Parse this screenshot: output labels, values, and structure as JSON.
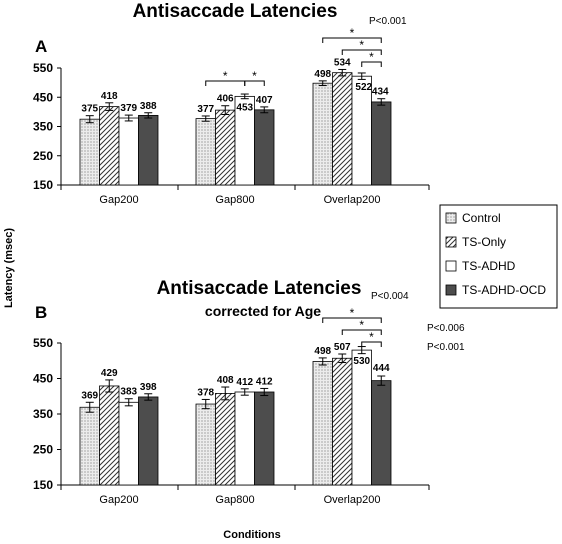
{
  "colors": {
    "control_fill": "#e6e6e6",
    "ts_only_fill": "#ffffff",
    "ts_adhd_fill": "#ffffff",
    "ts_adhd_ocd_fill": "#4d4d4d",
    "axis": "#000000"
  },
  "y_axis_label": "Latency (msec)",
  "x_axis_label": "Conditions",
  "legend": {
    "placement": "right",
    "items": [
      {
        "label": "Control",
        "pattern": "dots"
      },
      {
        "label": "TS-Only",
        "pattern": "diagonal"
      },
      {
        "label": "TS-ADHD",
        "pattern": "white"
      },
      {
        "label": "TS-ADHD-OCD",
        "pattern": "dark"
      }
    ]
  },
  "chart_data": [
    {
      "type": "bar",
      "panel_label": "A",
      "title": "Antisaccade Latencies",
      "subtitle": "",
      "categories": [
        "Gap200",
        "Gap800",
        "Overlap200"
      ],
      "ylim": [
        150,
        550
      ],
      "yticks": [
        "150",
        "250",
        "350",
        "450",
        "550"
      ],
      "ytick_values": [
        150,
        250,
        350,
        450,
        550
      ],
      "series": [
        {
          "name": "Control",
          "values": [
            375,
            377,
            498
          ],
          "errors": [
            12,
            9,
            8
          ]
        },
        {
          "name": "TS-Only",
          "values": [
            418,
            406,
            534
          ],
          "errors": [
            13,
            15,
            11
          ]
        },
        {
          "name": "TS-ADHD",
          "values": [
            379,
            453,
            522
          ],
          "errors": [
            10,
            8,
            11
          ]
        },
        {
          "name": "TS-ADHD-OCD",
          "values": [
            388,
            407,
            434
          ],
          "errors": [
            9,
            10,
            11
          ]
        }
      ],
      "value_labels": [
        [
          "375",
          "418",
          "379",
          "388"
        ],
        [
          "377",
          "406",
          "453",
          "407"
        ],
        [
          "498",
          "534",
          "522",
          "434"
        ]
      ],
      "annotations": [
        {
          "type": "star",
          "text": "*",
          "group": 1,
          "from": 0,
          "to": 2,
          "level": 0
        },
        {
          "type": "star",
          "text": "*",
          "group": 1,
          "from": 2,
          "to": 3,
          "level": 0
        },
        {
          "type": "star",
          "text": "*",
          "group": 2,
          "from": 0,
          "to": 3,
          "level": 2
        },
        {
          "type": "star",
          "text": "*",
          "group": 2,
          "from": 1,
          "to": 3,
          "level": 1
        },
        {
          "type": "star",
          "text": "*",
          "group": 2,
          "from": 2,
          "to": 3,
          "level": 0
        },
        {
          "type": "p",
          "text": "P<0.001",
          "anchor": "top"
        }
      ]
    },
    {
      "type": "bar",
      "panel_label": "B",
      "title": "Antisaccade Latencies",
      "subtitle": "corrected for Age",
      "categories": [
        "Gap200",
        "Gap800",
        "Overlap200"
      ],
      "ylim": [
        150,
        550
      ],
      "yticks": [
        "150",
        "250",
        "350",
        "450",
        "550"
      ],
      "ytick_values": [
        150,
        250,
        350,
        450,
        550
      ],
      "series": [
        {
          "name": "Control",
          "values": [
            369,
            378,
            498
          ],
          "errors": [
            14,
            13,
            10
          ]
        },
        {
          "name": "TS-Only",
          "values": [
            429,
            408,
            507
          ],
          "errors": [
            17,
            18,
            12
          ]
        },
        {
          "name": "TS-ADHD",
          "values": [
            383,
            412,
            530
          ],
          "errors": [
            10,
            9,
            10
          ]
        },
        {
          "name": "TS-ADHD-OCD",
          "values": [
            398,
            412,
            444
          ],
          "errors": [
            9,
            10,
            13
          ]
        }
      ],
      "value_labels": [
        [
          "369",
          "429",
          "383",
          "398"
        ],
        [
          "378",
          "408",
          "412",
          "412"
        ],
        [
          "498",
          "507",
          "530",
          "444"
        ]
      ],
      "annotations": [
        {
          "type": "star",
          "text": "*",
          "group": 2,
          "from": 0,
          "to": 3,
          "level": 2
        },
        {
          "type": "star",
          "text": "*",
          "group": 2,
          "from": 1,
          "to": 3,
          "level": 1
        },
        {
          "type": "star",
          "text": "*",
          "group": 2,
          "from": 2,
          "to": 3,
          "level": 0
        },
        {
          "type": "p",
          "text": "P<0.004",
          "anchor": "top"
        },
        {
          "type": "p",
          "text": "P<0.006",
          "anchor": "mid"
        },
        {
          "type": "p",
          "text": "P<0.001",
          "anchor": "low"
        }
      ]
    }
  ]
}
